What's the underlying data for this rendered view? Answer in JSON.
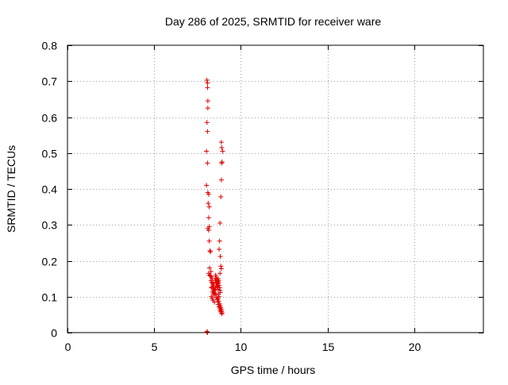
{
  "chart_data": {
    "type": "scatter",
    "title": "Day 286 of 2025, SRMTID for receiver ware",
    "xlabel": "GPS time / hours",
    "ylabel": "SRMTID / TECUs",
    "xlim": [
      0,
      24
    ],
    "ylim": [
      0,
      0.8
    ],
    "xticks": [
      0,
      5,
      10,
      15,
      20
    ],
    "xtick_labels": [
      "0",
      "5",
      "10",
      "15",
      "20"
    ],
    "yticks": [
      0,
      0.1,
      0.2,
      0.3,
      0.4,
      0.5,
      0.6,
      0.7,
      0.8
    ],
    "ytick_labels": [
      "0",
      "0.1",
      "0.2",
      "0.3",
      "0.4",
      "0.5",
      "0.6",
      "0.7",
      "0.8"
    ],
    "grid": true,
    "marker": "+",
    "series": [
      {
        "name": "SRMTID",
        "color": "#e00000",
        "x": [
          8.05,
          8.08,
          8.08,
          8.1,
          8.1,
          8.05,
          8.08,
          8.02,
          8.08,
          8.02,
          8.1,
          8.15,
          8.12,
          8.18,
          8.15,
          8.18,
          8.1,
          8.15,
          8.18,
          8.22,
          8.25,
          8.2,
          8.28,
          8.15,
          8.2,
          8.25,
          8.3,
          8.35,
          8.28,
          8.32,
          8.4,
          8.38,
          8.45,
          8.35,
          8.3,
          8.42,
          8.48,
          8.38,
          8.45,
          8.4,
          8.5,
          8.42,
          8.3,
          8.35,
          8.4,
          8.48,
          8.52,
          8.55,
          8.6,
          8.62,
          8.65,
          8.7,
          8.55,
          8.58,
          8.62,
          8.68,
          8.72,
          8.75,
          8.78,
          8.8,
          8.82,
          8.7,
          8.75,
          8.68,
          8.72,
          8.78,
          8.82,
          8.85,
          8.88,
          8.9,
          8.92,
          8.88,
          8.9,
          8.95,
          8.92,
          8.9,
          8.88,
          8.85,
          8.8,
          8.78,
          8.75,
          8.82,
          8.85,
          8.88,
          8.8,
          8.7,
          8.72,
          8.65,
          8.58,
          8.62,
          8.55,
          8.5,
          8.45,
          8.48,
          8.52,
          8.6,
          8.65,
          8.68,
          8.7,
          8.75,
          8.78,
          8.8,
          8.85,
          8.9,
          8.05,
          8.08,
          8.06
        ],
        "y": [
          0.703,
          0.695,
          0.682,
          0.645,
          0.625,
          0.585,
          0.56,
          0.505,
          0.472,
          0.41,
          0.39,
          0.385,
          0.36,
          0.35,
          0.32,
          0.295,
          0.29,
          0.285,
          0.255,
          0.228,
          0.225,
          0.18,
          0.17,
          0.165,
          0.16,
          0.158,
          0.155,
          0.15,
          0.145,
          0.14,
          0.138,
          0.135,
          0.13,
          0.128,
          0.125,
          0.122,
          0.118,
          0.115,
          0.112,
          0.11,
          0.108,
          0.105,
          0.1,
          0.095,
          0.09,
          0.085,
          0.145,
          0.15,
          0.14,
          0.135,
          0.128,
          0.12,
          0.16,
          0.155,
          0.148,
          0.142,
          0.138,
          0.132,
          0.125,
          0.118,
          0.112,
          0.108,
          0.1,
          0.095,
          0.088,
          0.08,
          0.075,
          0.07,
          0.065,
          0.06,
          0.055,
          0.53,
          0.515,
          0.505,
          0.475,
          0.472,
          0.425,
          0.378,
          0.305,
          0.255,
          0.232,
          0.212,
          0.185,
          0.178,
          0.165,
          0.15,
          0.145,
          0.14,
          0.135,
          0.13,
          0.125,
          0.12,
          0.115,
          0.11,
          0.105,
          0.098,
          0.092,
          0.085,
          0.078,
          0.072,
          0.068,
          0.062,
          0.058,
          0.052,
          0.003,
          0.0,
          0.001
        ]
      }
    ]
  }
}
